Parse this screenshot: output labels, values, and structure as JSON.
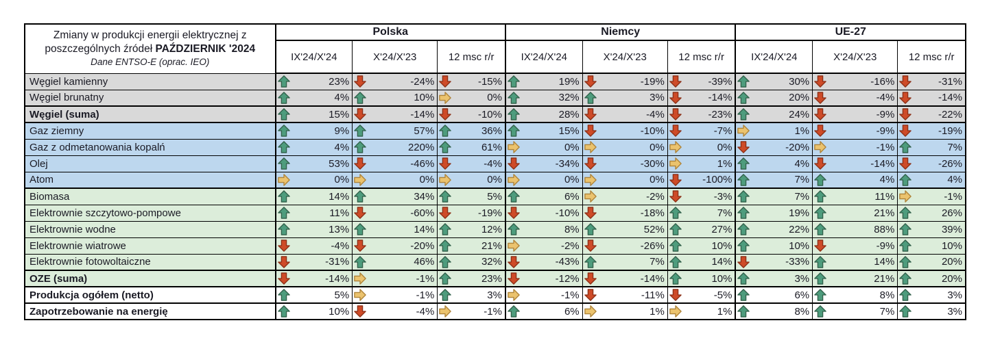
{
  "title": {
    "line1": "Zmiany w produkcji energii elektrycznej  z",
    "line2_normal": "poszczególnych źródeł ",
    "line2_bold": "PAŹDZIERNIK '2024",
    "line3": "Dane ENTSO-E (oprac. IEO)"
  },
  "colors": {
    "border": "#000000",
    "text": "#1a1a24",
    "row_bg": {
      "gray": "#D9D9D9",
      "blue": "#BDD7EE",
      "green": "#DCEDDA",
      "white": "#FFFFFF"
    },
    "arrow": {
      "up": {
        "fill": "#4E9C7D",
        "stroke": "#31604A"
      },
      "down": {
        "fill": "#CE4B28",
        "stroke": "#8C2F16"
      },
      "flat": {
        "fill": "#EBC36E",
        "stroke": "#AE8339"
      }
    }
  },
  "chart_data": {
    "type": "table",
    "title": "Zmiany w produkcji energii elektrycznej z poszczególnych źródeł PAŹDZIERNIK '2024",
    "subtitle": "Dane ENTSO-E (oprac. IEO)",
    "unit": "%",
    "column_groups": [
      "Polska",
      "Niemcy",
      "UE-27"
    ],
    "columns_per_group": [
      "IX'24/X'24",
      "X'24/X'23",
      "12 msc r/r"
    ],
    "trend_legend": {
      "up": "wzrost (zielona strzałka w górę)",
      "down": "spadek (czerwona strzałka w dół)",
      "flat": "bez zmian (żółta strzałka w prawo)"
    },
    "rows": [
      {
        "label": "Węgiel kamienny",
        "bg": "gray",
        "bold": false,
        "thick_top": false,
        "cells": [
          {
            "d": "up",
            "v": 23
          },
          {
            "d": "down",
            "v": -24
          },
          {
            "d": "down",
            "v": -15
          },
          {
            "d": "up",
            "v": 19
          },
          {
            "d": "down",
            "v": -19
          },
          {
            "d": "down",
            "v": -39
          },
          {
            "d": "up",
            "v": 30
          },
          {
            "d": "down",
            "v": -16
          },
          {
            "d": "down",
            "v": -31
          }
        ]
      },
      {
        "label": "Węgiel brunatny",
        "bg": "gray",
        "bold": false,
        "thick_top": false,
        "cells": [
          {
            "d": "up",
            "v": 4
          },
          {
            "d": "up",
            "v": 10
          },
          {
            "d": "flat",
            "v": 0
          },
          {
            "d": "up",
            "v": 32
          },
          {
            "d": "up",
            "v": 3
          },
          {
            "d": "down",
            "v": -14
          },
          {
            "d": "up",
            "v": 20
          },
          {
            "d": "down",
            "v": -4
          },
          {
            "d": "down",
            "v": -14
          }
        ]
      },
      {
        "label": "Węgiel (suma)",
        "bg": "gray",
        "bold": true,
        "thick_top": true,
        "cells": [
          {
            "d": "up",
            "v": 15
          },
          {
            "d": "down",
            "v": -14
          },
          {
            "d": "down",
            "v": -10
          },
          {
            "d": "up",
            "v": 28
          },
          {
            "d": "down",
            "v": -4
          },
          {
            "d": "down",
            "v": -23
          },
          {
            "d": "up",
            "v": 24
          },
          {
            "d": "down",
            "v": -9
          },
          {
            "d": "down",
            "v": -22
          }
        ]
      },
      {
        "label": "Gaz ziemny",
        "bg": "blue",
        "bold": false,
        "thick_top": true,
        "cells": [
          {
            "d": "up",
            "v": 9
          },
          {
            "d": "up",
            "v": 57
          },
          {
            "d": "up",
            "v": 36
          },
          {
            "d": "up",
            "v": 15
          },
          {
            "d": "down",
            "v": -10
          },
          {
            "d": "down",
            "v": -7
          },
          {
            "d": "flat",
            "v": 1
          },
          {
            "d": "down",
            "v": -9
          },
          {
            "d": "down",
            "v": -19
          }
        ]
      },
      {
        "label": "Gaz z odmetanowania kopalń",
        "bg": "blue",
        "bold": false,
        "thick_top": false,
        "cells": [
          {
            "d": "up",
            "v": 4
          },
          {
            "d": "up",
            "v": 220
          },
          {
            "d": "up",
            "v": 61
          },
          {
            "d": "flat",
            "v": 0
          },
          {
            "d": "flat",
            "v": 0
          },
          {
            "d": "flat",
            "v": 0
          },
          {
            "d": "down",
            "v": -20
          },
          {
            "d": "flat",
            "v": -1
          },
          {
            "d": "up",
            "v": 7
          }
        ]
      },
      {
        "label": "Olej",
        "bg": "blue",
        "bold": false,
        "thick_top": false,
        "cells": [
          {
            "d": "up",
            "v": 53
          },
          {
            "d": "down",
            "v": -46
          },
          {
            "d": "down",
            "v": -4
          },
          {
            "d": "down",
            "v": -34
          },
          {
            "d": "down",
            "v": -30
          },
          {
            "d": "flat",
            "v": 1
          },
          {
            "d": "up",
            "v": 4
          },
          {
            "d": "down",
            "v": -14
          },
          {
            "d": "down",
            "v": -26
          }
        ]
      },
      {
        "label": "Atom",
        "bg": "blue",
        "bold": false,
        "thick_top": false,
        "cells": [
          {
            "d": "flat",
            "v": 0
          },
          {
            "d": "flat",
            "v": 0
          },
          {
            "d": "flat",
            "v": 0
          },
          {
            "d": "flat",
            "v": 0
          },
          {
            "d": "flat",
            "v": 0
          },
          {
            "d": "down",
            "v": -100
          },
          {
            "d": "up",
            "v": 7
          },
          {
            "d": "up",
            "v": 4
          },
          {
            "d": "up",
            "v": 4
          }
        ]
      },
      {
        "label": "Biomasa",
        "bg": "green",
        "bold": false,
        "thick_top": true,
        "cells": [
          {
            "d": "up",
            "v": 14
          },
          {
            "d": "up",
            "v": 34
          },
          {
            "d": "up",
            "v": 5
          },
          {
            "d": "up",
            "v": 6
          },
          {
            "d": "flat",
            "v": -2
          },
          {
            "d": "down",
            "v": -3
          },
          {
            "d": "up",
            "v": 7
          },
          {
            "d": "up",
            "v": 11
          },
          {
            "d": "flat",
            "v": -1
          }
        ]
      },
      {
        "label": "Elektrownie szczytowo-pompowe",
        "bg": "green",
        "bold": false,
        "thick_top": false,
        "cells": [
          {
            "d": "up",
            "v": 11
          },
          {
            "d": "down",
            "v": -60
          },
          {
            "d": "down",
            "v": -19
          },
          {
            "d": "down",
            "v": -10
          },
          {
            "d": "down",
            "v": -18
          },
          {
            "d": "up",
            "v": 7
          },
          {
            "d": "up",
            "v": 19
          },
          {
            "d": "up",
            "v": 21
          },
          {
            "d": "up",
            "v": 26
          }
        ]
      },
      {
        "label": "Elektrownie wodne",
        "bg": "green",
        "bold": false,
        "thick_top": false,
        "cells": [
          {
            "d": "up",
            "v": 13
          },
          {
            "d": "up",
            "v": 14
          },
          {
            "d": "up",
            "v": 12
          },
          {
            "d": "up",
            "v": 8
          },
          {
            "d": "up",
            "v": 52
          },
          {
            "d": "up",
            "v": 27
          },
          {
            "d": "up",
            "v": 22
          },
          {
            "d": "up",
            "v": 88
          },
          {
            "d": "up",
            "v": 39
          }
        ]
      },
      {
        "label": "Elektrownie wiatrowe",
        "bg": "green",
        "bold": false,
        "thick_top": false,
        "cells": [
          {
            "d": "down",
            "v": -4
          },
          {
            "d": "down",
            "v": -20
          },
          {
            "d": "up",
            "v": 21
          },
          {
            "d": "flat",
            "v": -2
          },
          {
            "d": "down",
            "v": -26
          },
          {
            "d": "up",
            "v": 10
          },
          {
            "d": "up",
            "v": 10
          },
          {
            "d": "down",
            "v": -9
          },
          {
            "d": "up",
            "v": 10
          }
        ]
      },
      {
        "label": "Elektrownie fotowoltaiczne",
        "bg": "green",
        "bold": false,
        "thick_top": false,
        "cells": [
          {
            "d": "down",
            "v": -31
          },
          {
            "d": "up",
            "v": 46
          },
          {
            "d": "up",
            "v": 32
          },
          {
            "d": "down",
            "v": -43
          },
          {
            "d": "up",
            "v": 7
          },
          {
            "d": "up",
            "v": 14
          },
          {
            "d": "down",
            "v": -33
          },
          {
            "d": "up",
            "v": 14
          },
          {
            "d": "up",
            "v": 20
          }
        ]
      },
      {
        "label": "OZE (suma)",
        "bg": "green",
        "bold": true,
        "thick_top": true,
        "cells": [
          {
            "d": "down",
            "v": -14
          },
          {
            "d": "flat",
            "v": -1
          },
          {
            "d": "up",
            "v": 23
          },
          {
            "d": "down",
            "v": -12
          },
          {
            "d": "down",
            "v": -14
          },
          {
            "d": "up",
            "v": 10
          },
          {
            "d": "up",
            "v": 3
          },
          {
            "d": "up",
            "v": 21
          },
          {
            "d": "up",
            "v": 20
          }
        ]
      },
      {
        "label": "Produkcja ogółem (netto)",
        "bg": "white",
        "bold": true,
        "thick_top": true,
        "cells": [
          {
            "d": "up",
            "v": 5
          },
          {
            "d": "flat",
            "v": -1
          },
          {
            "d": "up",
            "v": 3
          },
          {
            "d": "flat",
            "v": -1
          },
          {
            "d": "down",
            "v": -11
          },
          {
            "d": "down",
            "v": -5
          },
          {
            "d": "up",
            "v": 6
          },
          {
            "d": "up",
            "v": 8
          },
          {
            "d": "up",
            "v": 3
          }
        ]
      },
      {
        "label": "Zapotrzebowanie na energię",
        "bg": "white",
        "bold": true,
        "thick_top": true,
        "cells": [
          {
            "d": "up",
            "v": 10
          },
          {
            "d": "down",
            "v": -4
          },
          {
            "d": "flat",
            "v": -1
          },
          {
            "d": "up",
            "v": 6
          },
          {
            "d": "flat",
            "v": 1
          },
          {
            "d": "flat",
            "v": 1
          },
          {
            "d": "up",
            "v": 8
          },
          {
            "d": "up",
            "v": 7
          },
          {
            "d": "up",
            "v": 3
          }
        ]
      }
    ]
  }
}
